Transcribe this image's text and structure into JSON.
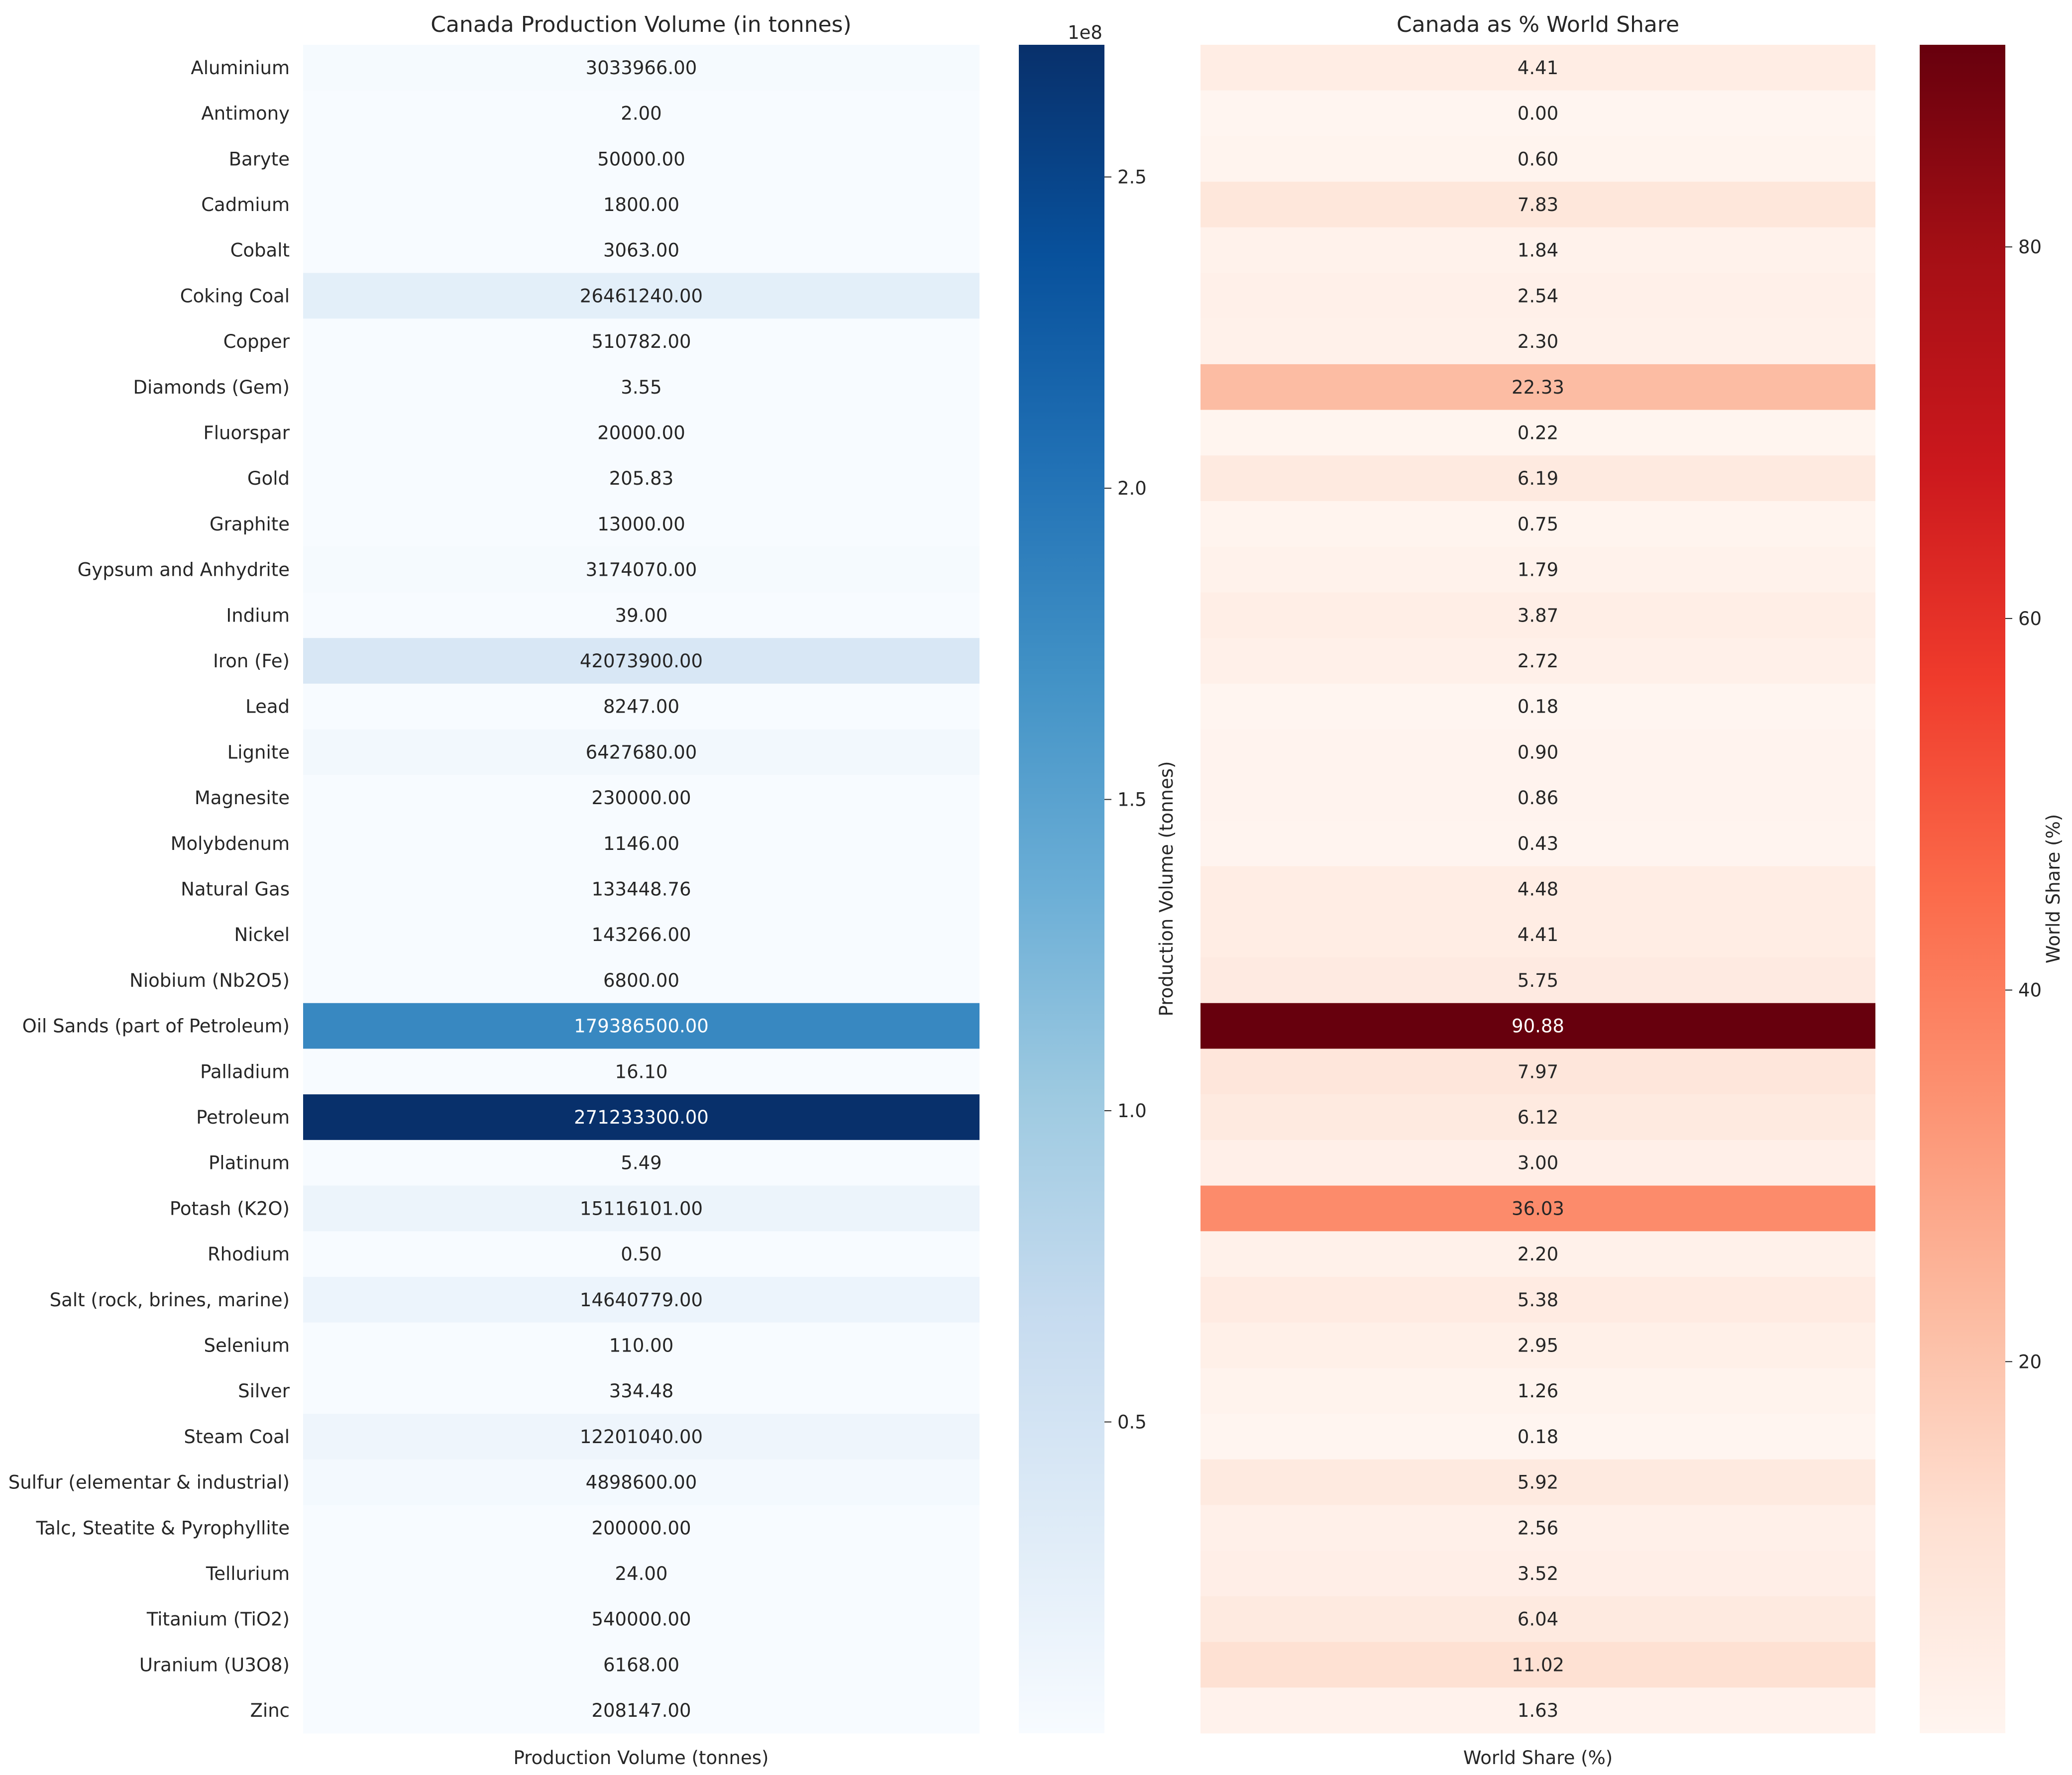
{
  "chart_data": [
    {
      "type": "heatmap",
      "title": "Canada Production Volume (in tonnes)",
      "xlabel": "Production Volume (tonnes)",
      "column": "Production Volume (tonnes)",
      "colormap": "Blues",
      "colorbar": {
        "label": "Production Volume (tonnes)",
        "scale_note": "1e8",
        "ticks": [
          0.5,
          1.0,
          1.5,
          2.0,
          2.5
        ],
        "tick_labels": [
          "0.5",
          "1.0",
          "1.5",
          "2.0",
          "2.5"
        ],
        "range": [
          0.5,
          271233300
        ]
      },
      "categories": [
        "Aluminium",
        "Antimony",
        "Baryte",
        "Cadmium",
        "Cobalt",
        "Coking Coal",
        "Copper",
        "Diamonds (Gem)",
        "Fluorspar",
        "Gold",
        "Graphite",
        "Gypsum and Anhydrite",
        "Indium",
        "Iron (Fe)",
        "Lead",
        "Lignite",
        "Magnesite",
        "Molybdenum",
        "Natural Gas",
        "Nickel",
        "Niobium (Nb2O5)",
        "Oil Sands (part of Petroleum)",
        "Palladium",
        "Petroleum",
        "Platinum",
        "Potash (K2O)",
        "Rhodium",
        "Salt (rock, brines, marine)",
        "Selenium",
        "Silver",
        "Steam Coal ",
        "Sulfur (elementar & industrial)",
        "Talc, Steatite & Pyrophyllite",
        "Tellurium",
        "Titanium (TiO2)",
        "Uranium (U3O8)",
        "Zinc"
      ],
      "values": [
        3033966.0,
        2.0,
        50000.0,
        1800.0,
        3063.0,
        26461240.0,
        510782.0,
        3.55,
        20000.0,
        205.83,
        13000.0,
        3174070.0,
        39.0,
        42073900.0,
        8247.0,
        6427680.0,
        230000.0,
        1146.0,
        133448.76,
        143266.0,
        6800.0,
        179386500.0,
        16.1,
        271233300.0,
        5.49,
        15116101.0,
        0.5,
        14640779.0,
        110.0,
        334.48,
        12201040.0,
        4898600.0,
        200000.0,
        24.0,
        540000.0,
        6168.0,
        208147.0
      ],
      "value_labels": [
        "3033966.00",
        "2.00",
        "50000.00",
        "1800.00",
        "3063.00",
        "26461240.00",
        "510782.00",
        "3.55",
        "20000.00",
        "205.83",
        "13000.00",
        "3174070.00",
        "39.00",
        "42073900.00",
        "8247.00",
        "6427680.00",
        "230000.00",
        "1146.00",
        "133448.76",
        "143266.00",
        "6800.00",
        "179386500.00",
        "16.10",
        "271233300.00",
        "5.49",
        "15116101.00",
        "0.50",
        "14640779.00",
        "110.00",
        "334.48",
        "12201040.00",
        "4898600.00",
        "200000.00",
        "24.00",
        "540000.00",
        "6168.00",
        "208147.00"
      ]
    },
    {
      "type": "heatmap",
      "title": "Canada as % World Share",
      "xlabel": "World Share (%)",
      "column": "World Share (%)",
      "colormap": "Reds",
      "colorbar": {
        "label": "World Share (%)",
        "ticks": [
          20,
          40,
          60,
          80
        ],
        "tick_labels": [
          "20",
          "40",
          "60",
          "80"
        ],
        "range": [
          0.0,
          90.88
        ]
      },
      "values": [
        4.41,
        0.0,
        0.6,
        7.83,
        1.84,
        2.54,
        2.3,
        22.33,
        0.22,
        6.19,
        0.75,
        1.79,
        3.87,
        2.72,
        0.18,
        0.9,
        0.86,
        0.43,
        4.48,
        4.41,
        5.75,
        90.88,
        7.97,
        6.12,
        3.0,
        36.03,
        2.2,
        5.38,
        2.95,
        1.26,
        0.18,
        5.92,
        2.56,
        3.52,
        6.04,
        11.02,
        1.63
      ],
      "value_labels": [
        "4.41",
        "0.00",
        "0.60",
        "7.83",
        "1.84",
        "2.54",
        "2.30",
        "22.33",
        "0.22",
        "6.19",
        "0.75",
        "1.79",
        "3.87",
        "2.72",
        "0.18",
        "0.90",
        "0.86",
        "0.43",
        "4.48",
        "4.41",
        "5.75",
        "90.88",
        "7.97",
        "6.12",
        "3.00",
        "36.03",
        "2.20",
        "5.38",
        "2.95",
        "1.26",
        "0.18",
        "5.92",
        "2.56",
        "3.52",
        "6.04",
        "11.02",
        "1.63"
      ]
    }
  ]
}
